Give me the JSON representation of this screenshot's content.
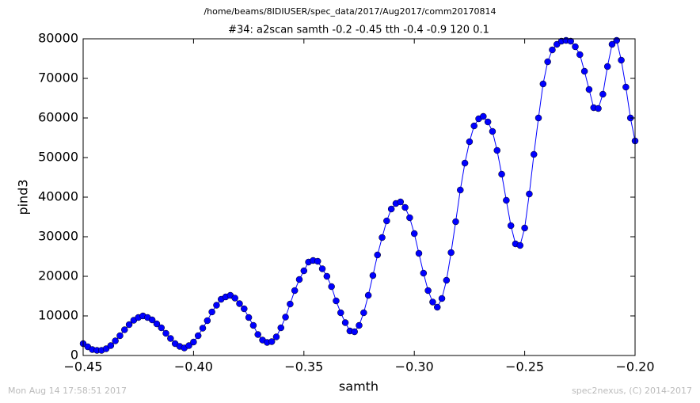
{
  "chart_data": {
    "type": "line",
    "title": "/home/beams/8IDIUSER/spec_data/2017/Aug2017/comm20170814",
    "subtitle": "#34: a2scan  samth -0.2 -0.45  tth -0.4 -0.9  120 0.1",
    "x_label": "samth",
    "y_label": "pind3",
    "footer_left": "Mon Aug 14 17:58:51 2017",
    "footer_right": "spec2nexus, (C) 2014-2017",
    "x": [
      -0.45,
      -0.447917,
      -0.445833,
      -0.44375,
      -0.441667,
      -0.439583,
      -0.4375,
      -0.435417,
      -0.433333,
      -0.43125,
      -0.429167,
      -0.427083,
      -0.425,
      -0.422917,
      -0.420833,
      -0.41875,
      -0.416667,
      -0.414583,
      -0.4125,
      -0.410417,
      -0.408333,
      -0.40625,
      -0.404167,
      -0.402083,
      -0.4,
      -0.397917,
      -0.395833,
      -0.39375,
      -0.391667,
      -0.389583,
      -0.3875,
      -0.385417,
      -0.383333,
      -0.38125,
      -0.379167,
      -0.377083,
      -0.375,
      -0.372917,
      -0.370833,
      -0.36875,
      -0.366667,
      -0.364583,
      -0.3625,
      -0.360417,
      -0.358333,
      -0.35625,
      -0.354167,
      -0.352083,
      -0.35,
      -0.347917,
      -0.345833,
      -0.34375,
      -0.341667,
      -0.339583,
      -0.3375,
      -0.335417,
      -0.333333,
      -0.33125,
      -0.329167,
      -0.327083,
      -0.325,
      -0.322917,
      -0.320833,
      -0.31875,
      -0.316667,
      -0.314583,
      -0.3125,
      -0.310417,
      -0.308333,
      -0.30625,
      -0.304167,
      -0.302083,
      -0.3,
      -0.297917,
      -0.295833,
      -0.29375,
      -0.291667,
      -0.289583,
      -0.2875,
      -0.285417,
      -0.283333,
      -0.28125,
      -0.279167,
      -0.277083,
      -0.275,
      -0.272917,
      -0.270833,
      -0.26875,
      -0.266667,
      -0.264583,
      -0.2625,
      -0.260417,
      -0.258333,
      -0.25625,
      -0.254167,
      -0.252083,
      -0.25,
      -0.247917,
      -0.245833,
      -0.24375,
      -0.241667,
      -0.239583,
      -0.2375,
      -0.235417,
      -0.233333,
      -0.23125,
      -0.229167,
      -0.227083,
      -0.225,
      -0.222917,
      -0.220833,
      -0.21875,
      -0.216667,
      -0.214583,
      -0.2125,
      -0.210417,
      -0.208333,
      -0.20625,
      -0.204167,
      -0.202083,
      -0.2
    ],
    "series": [
      {
        "name": "pind3",
        "color": "#0000ff",
        "values": [
          3000,
          2200,
          1500,
          1300,
          1300,
          1700,
          2500,
          3700,
          5000,
          6500,
          7800,
          8900,
          9600,
          10000,
          9600,
          9000,
          8000,
          7000,
          5600,
          4300,
          3000,
          2300,
          1900,
          2500,
          3400,
          5000,
          6900,
          8800,
          11000,
          12700,
          14200,
          14800,
          15200,
          14500,
          13100,
          11800,
          9600,
          7600,
          5300,
          3900,
          3300,
          3500,
          4700,
          7000,
          9700,
          13000,
          16400,
          19200,
          21400,
          23600,
          24000,
          23800,
          21900,
          20000,
          17400,
          13800,
          10800,
          8300,
          6200,
          6000,
          7600,
          10800,
          15200,
          20200,
          25400,
          29800,
          34000,
          37000,
          38400,
          38800,
          37400,
          34800,
          30800,
          25800,
          20800,
          16400,
          13500,
          12200,
          14400,
          19000,
          26000,
          33800,
          41800,
          48600,
          54000,
          58000,
          59800,
          60400,
          59000,
          56600,
          51800,
          45800,
          39200,
          32800,
          28200,
          27800,
          32200,
          40800,
          50800,
          60000,
          68600,
          74200,
          77200,
          78600,
          79400,
          79600,
          79400,
          78000,
          76000,
          71800,
          67200,
          62600,
          62400,
          66000,
          73000,
          78600,
          79600,
          74600,
          67800,
          60000,
          54200
        ]
      }
    ],
    "xlim": [
      -0.45,
      -0.2
    ],
    "xticks": [
      {
        "value": -0.45,
        "label": "−0.45"
      },
      {
        "value": -0.4,
        "label": "−0.40"
      },
      {
        "value": -0.35,
        "label": "−0.35"
      },
      {
        "value": -0.3,
        "label": "−0.30"
      },
      {
        "value": -0.25,
        "label": "−0.25"
      },
      {
        "value": -0.2,
        "label": "−0.20"
      }
    ],
    "ylim": [
      0,
      80000
    ],
    "yticks": [
      0,
      10000,
      20000,
      30000,
      40000,
      50000,
      60000,
      70000,
      80000
    ],
    "grid": false,
    "marker": "o"
  }
}
